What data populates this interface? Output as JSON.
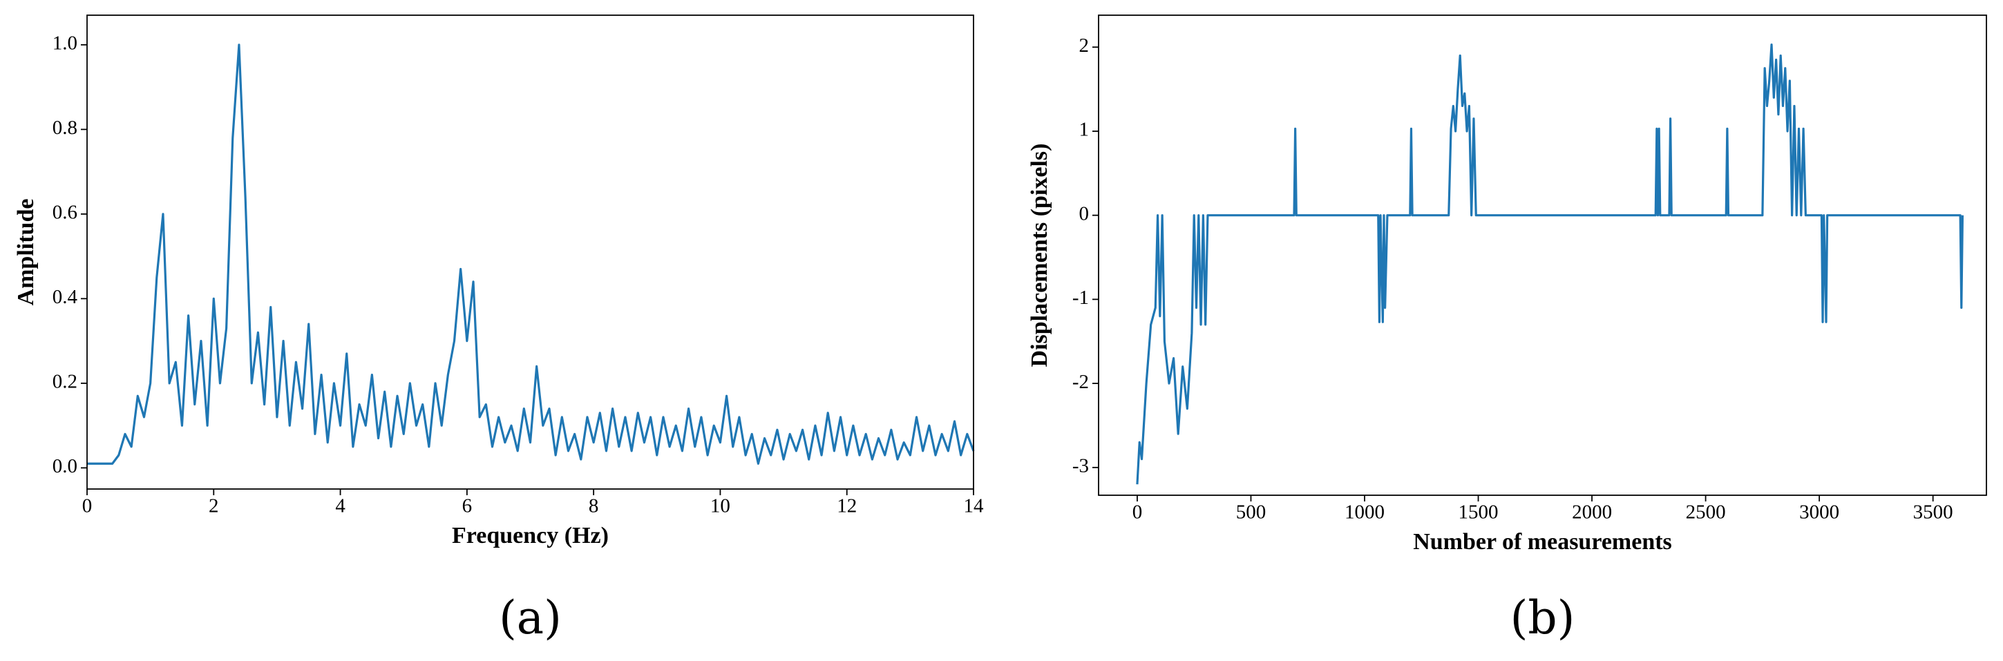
{
  "chart_data": [
    {
      "type": "line",
      "panel_label": "(a)",
      "xlabel": "Frequency (Hz)",
      "ylabel": "Amplitude",
      "xlim": [
        0,
        14
      ],
      "ylim": [
        -0.05,
        1.07
      ],
      "xticks": [
        0,
        2,
        4,
        6,
        8,
        10,
        12,
        14
      ],
      "yticks": [
        {
          "value": 0,
          "label": "0.0"
        },
        0.2,
        0.4,
        0.6,
        0.8,
        {
          "value": 1,
          "label": "1.0"
        }
      ],
      "series": [
        {
          "color": "#1f77b4",
          "x": [
            0,
            0.1,
            0.2,
            0.3,
            0.4,
            0.5,
            0.6,
            0.7,
            0.8,
            0.9,
            1,
            1.1,
            1.2,
            1.3,
            1.4,
            1.5,
            1.6,
            1.7,
            1.8,
            1.9,
            2,
            2.1,
            2.2,
            2.3,
            2.4,
            2.5,
            2.6,
            2.7,
            2.8,
            2.9,
            3,
            3.1,
            3.2,
            3.3,
            3.4,
            3.5,
            3.6,
            3.7,
            3.8,
            3.9,
            4,
            4.1,
            4.2,
            4.3,
            4.4,
            4.5,
            4.6,
            4.7,
            4.8,
            4.9,
            5,
            5.1,
            5.2,
            5.3,
            5.4,
            5.5,
            5.6,
            5.7,
            5.8,
            5.9,
            6,
            6.1,
            6.2,
            6.3,
            6.4,
            6.5,
            6.6,
            6.7,
            6.8,
            6.9,
            7,
            7.1,
            7.2,
            7.3,
            7.4,
            7.5,
            7.6,
            7.7,
            7.8,
            7.9,
            8,
            8.1,
            8.2,
            8.3,
            8.4,
            8.5,
            8.6,
            8.7,
            8.8,
            8.9,
            9,
            9.1,
            9.2,
            9.3,
            9.4,
            9.5,
            9.6,
            9.7,
            9.8,
            9.9,
            10,
            10.1,
            10.2,
            10.3,
            10.4,
            10.5,
            10.6,
            10.7,
            10.8,
            10.9,
            11,
            11.1,
            11.2,
            11.3,
            11.4,
            11.5,
            11.6,
            11.7,
            11.8,
            11.9,
            12,
            12.1,
            12.2,
            12.3,
            12.4,
            12.5,
            12.6,
            12.7,
            12.8,
            12.9,
            13,
            13.1,
            13.2,
            13.3,
            13.4,
            13.5,
            13.6,
            13.7,
            13.8,
            13.9,
            14
          ],
          "values": [
            0.01,
            0.01,
            0.01,
            0.01,
            0.01,
            0.03,
            0.08,
            0.05,
            0.17,
            0.12,
            0.2,
            0.45,
            0.6,
            0.2,
            0.25,
            0.1,
            0.36,
            0.15,
            0.3,
            0.1,
            0.4,
            0.2,
            0.33,
            0.78,
            1.0,
            0.64,
            0.2,
            0.32,
            0.15,
            0.38,
            0.12,
            0.3,
            0.1,
            0.25,
            0.14,
            0.34,
            0.08,
            0.22,
            0.06,
            0.2,
            0.1,
            0.27,
            0.05,
            0.15,
            0.1,
            0.22,
            0.07,
            0.18,
            0.05,
            0.17,
            0.08,
            0.2,
            0.1,
            0.15,
            0.05,
            0.2,
            0.1,
            0.22,
            0.3,
            0.47,
            0.3,
            0.44,
            0.12,
            0.15,
            0.05,
            0.12,
            0.06,
            0.1,
            0.04,
            0.14,
            0.06,
            0.24,
            0.1,
            0.14,
            0.03,
            0.12,
            0.04,
            0.08,
            0.02,
            0.12,
            0.06,
            0.13,
            0.04,
            0.14,
            0.05,
            0.12,
            0.04,
            0.13,
            0.06,
            0.12,
            0.03,
            0.12,
            0.05,
            0.1,
            0.04,
            0.14,
            0.05,
            0.12,
            0.03,
            0.1,
            0.06,
            0.17,
            0.05,
            0.12,
            0.03,
            0.08,
            0.01,
            0.07,
            0.03,
            0.09,
            0.02,
            0.08,
            0.04,
            0.09,
            0.02,
            0.1,
            0.03,
            0.13,
            0.04,
            0.12,
            0.03,
            0.1,
            0.03,
            0.08,
            0.02,
            0.07,
            0.03,
            0.09,
            0.02,
            0.06,
            0.03,
            0.12,
            0.04,
            0.1,
            0.03,
            0.08,
            0.04,
            0.11,
            0.03,
            0.08,
            0.04
          ]
        }
      ]
    },
    {
      "type": "line",
      "panel_label": "(b)",
      "xlabel": "Number of measurements",
      "ylabel": "Displacements (pixels)",
      "xlim": [
        -170,
        3735
      ],
      "ylim": [
        -3.33,
        2.38
      ],
      "xticks": [
        0,
        500,
        1000,
        1500,
        2000,
        2500,
        3000,
        3500
      ],
      "yticks": [
        -3,
        -2,
        -1,
        0,
        1,
        2
      ],
      "series": [
        {
          "color": "#1f77b4",
          "x": [
            0,
            10,
            20,
            40,
            60,
            80,
            90,
            100,
            110,
            120,
            140,
            160,
            180,
            200,
            220,
            240,
            250,
            260,
            270,
            280,
            290,
            300,
            310,
            690,
            695,
            700,
            1060,
            1065,
            1070,
            1080,
            1085,
            1090,
            1100,
            1200,
            1205,
            1210,
            1370,
            1380,
            1390,
            1400,
            1410,
            1420,
            1430,
            1440,
            1450,
            1460,
            1470,
            1480,
            1490,
            2280,
            2285,
            2290,
            2295,
            2300,
            2340,
            2345,
            2350,
            2590,
            2595,
            2600,
            2750,
            2760,
            2770,
            2780,
            2790,
            2800,
            2810,
            2820,
            2830,
            2840,
            2850,
            2860,
            2870,
            2880,
            2890,
            2900,
            2910,
            2920,
            2930,
            2940,
            3010,
            3015,
            3020,
            3030,
            3035,
            3620,
            3625,
            3630
          ],
          "values": [
            -3.2,
            -2.7,
            -2.9,
            -2.0,
            -1.3,
            -1.1,
            0,
            -1.2,
            0,
            -1.5,
            -2.0,
            -1.7,
            -2.6,
            -1.8,
            -2.3,
            -1.4,
            0,
            -1.1,
            0,
            -1.3,
            0,
            -1.3,
            0,
            0,
            1.03,
            0,
            0,
            -1.27,
            0,
            -1.27,
            0,
            -1.1,
            0,
            0,
            1.03,
            0,
            0,
            1.03,
            1.3,
            1.0,
            1.5,
            1.9,
            1.3,
            1.45,
            1.0,
            1.3,
            0,
            1.15,
            0,
            0,
            1.03,
            0,
            1.03,
            0,
            0,
            1.15,
            0,
            0,
            1.03,
            0,
            0,
            1.75,
            1.3,
            1.6,
            2.03,
            1.4,
            1.85,
            1.2,
            1.9,
            1.3,
            1.75,
            1.0,
            1.6,
            0,
            1.3,
            0,
            1.03,
            0,
            1.03,
            0,
            0,
            -1.27,
            0,
            -1.27,
            0,
            0,
            -1.1,
            0
          ]
        }
      ]
    }
  ]
}
